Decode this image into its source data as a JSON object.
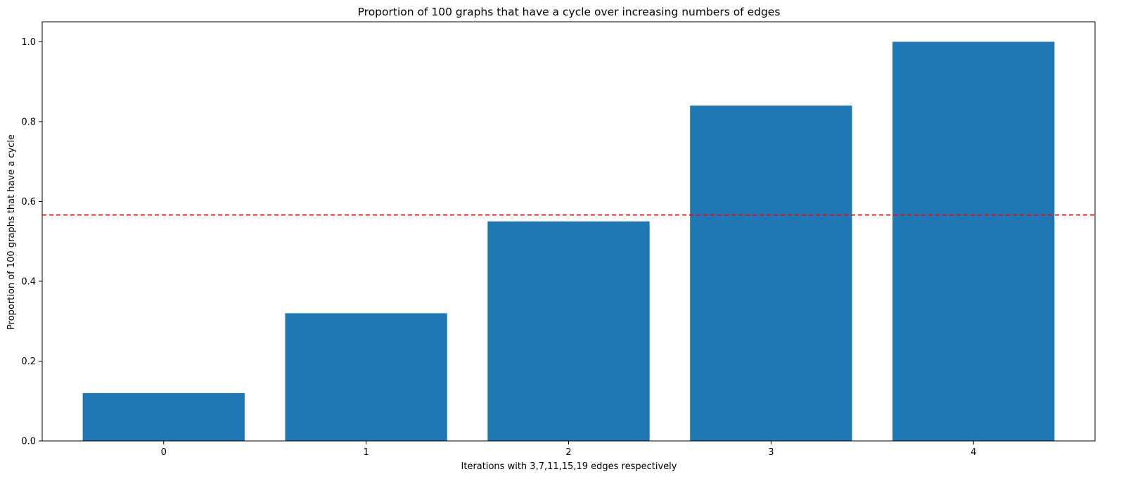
{
  "chart_data": {
    "type": "bar",
    "title": "Proportion of 100 graphs that have a cycle over increasing numbers of edges",
    "xlabel": "Iterations with 3,7,11,15,19 edges respectively",
    "ylabel": "Proportion of 100 graphs that have a cycle",
    "categories": [
      "0",
      "1",
      "2",
      "3",
      "4"
    ],
    "values": [
      0.12,
      0.32,
      0.55,
      0.84,
      1.0
    ],
    "ylim": [
      0,
      1.05
    ],
    "yticks": [
      0.0,
      0.2,
      0.4,
      0.6,
      0.8,
      1.0
    ],
    "ytick_labels": [
      "0.0",
      "0.2",
      "0.4",
      "0.6",
      "0.8",
      "1.0"
    ],
    "reference_line": {
      "y": 0.566,
      "style": "dashed",
      "color": "#ff0000"
    },
    "bar_color": "#1f77b4",
    "grid": false,
    "legend": "none"
  }
}
